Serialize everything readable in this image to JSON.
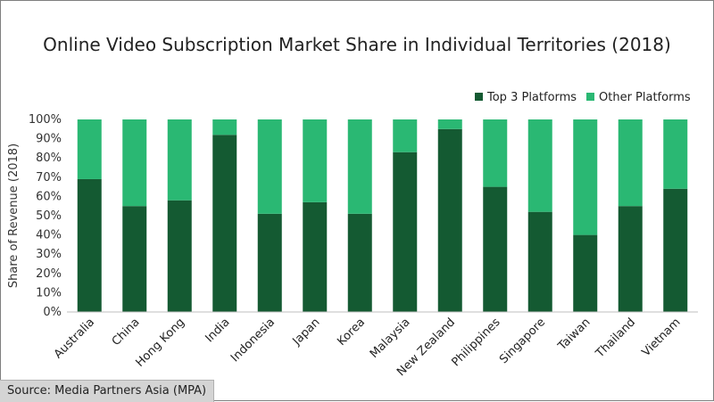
{
  "chart_data": {
    "type": "bar",
    "stacked": true,
    "title": "Online Video Subscription Market Share in Individual Territories (2018)",
    "ylabel": "Share of Revenue (2018)",
    "xlabel": "",
    "ylim": [
      0,
      100
    ],
    "yticks": [
      "0%",
      "10%",
      "20%",
      "30%",
      "40%",
      "50%",
      "60%",
      "70%",
      "80%",
      "90%",
      "100%"
    ],
    "categories": [
      "Australia",
      "China",
      "Hong Kong",
      "India",
      "Indonesia",
      "Japan",
      "Korea",
      "Malaysia",
      "New Zealand",
      "Philippines",
      "Singapore",
      "Taiwan",
      "Thailand",
      "Vietnam"
    ],
    "series": [
      {
        "name": "Top 3 Platforms",
        "color": "#145a32",
        "values": [
          69,
          55,
          58,
          92,
          51,
          57,
          51,
          83,
          95,
          65,
          52,
          40,
          55,
          64
        ]
      },
      {
        "name": "Other Platforms",
        "color": "#2ab873",
        "values": [
          31,
          45,
          42,
          8,
          49,
          43,
          49,
          17,
          5,
          35,
          48,
          60,
          45,
          36
        ]
      }
    ],
    "legend_position": "top-right",
    "grid": false
  },
  "source": "Source: Media Partners Asia (MPA)"
}
